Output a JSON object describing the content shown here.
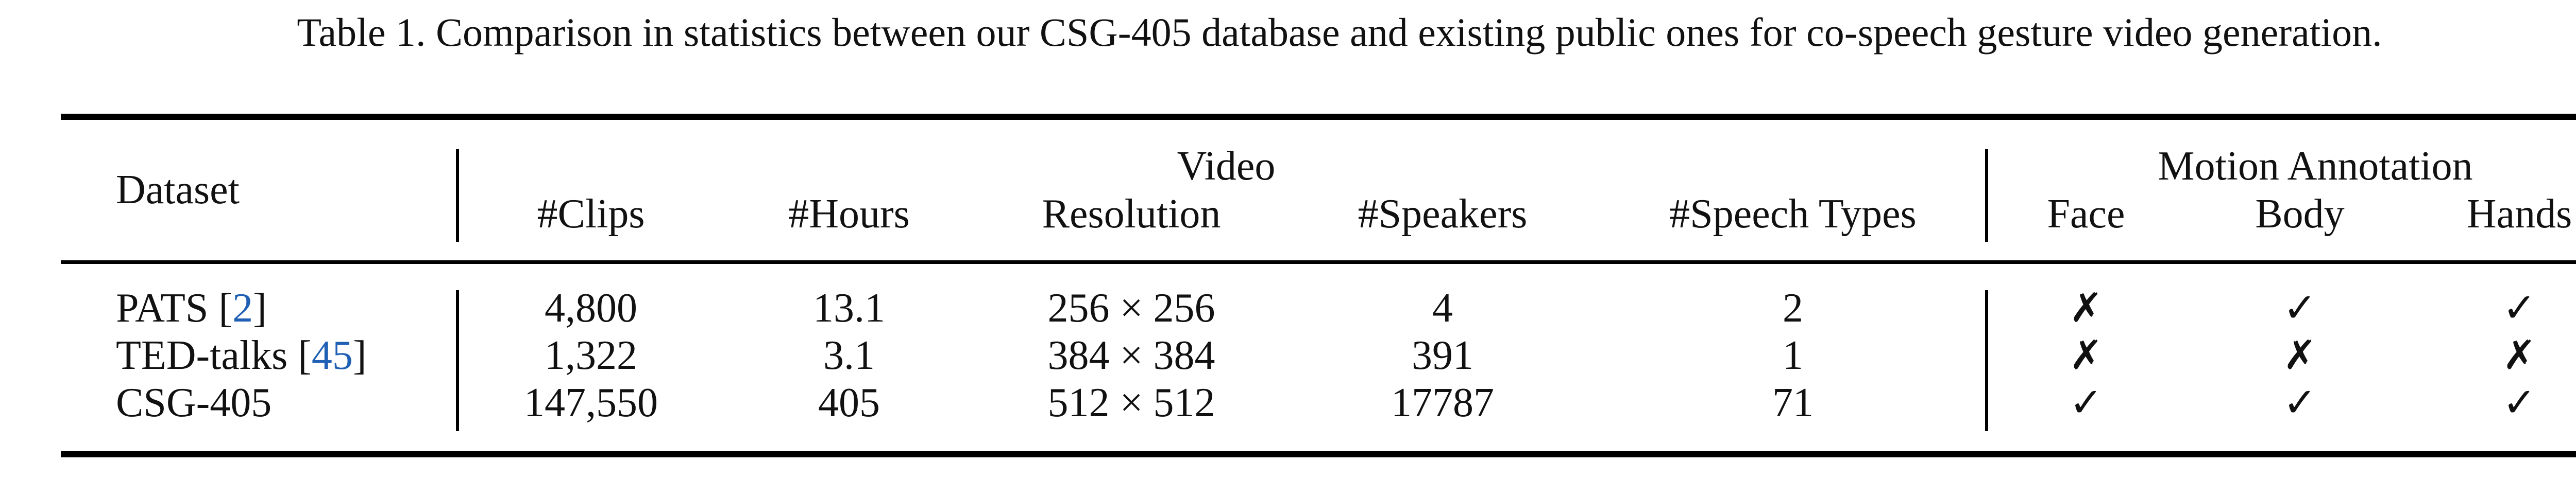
{
  "caption": "Table 1. Comparison in statistics between our CSG-405 database and existing public ones for co-speech gesture video generation.",
  "table": {
    "group_headers": {
      "video": "Video",
      "motion": "Motion Annotation"
    },
    "columns": {
      "dataset": "Dataset",
      "clips": "#Clips",
      "hours": "#Hours",
      "resolution": "Resolution",
      "speakers": "#Speakers",
      "speech_types": "#Speech Types",
      "face": "Face",
      "body": "Body",
      "hands": "Hands"
    },
    "rows": [
      {
        "name": "PATS [",
        "ref": "2",
        "ref_close": "]",
        "clips": "4,800",
        "hours": "13.1",
        "resolution": "256 × 256",
        "speakers": "4",
        "speech_types": "2",
        "face": "✗",
        "body": "✓",
        "hands": "✓"
      },
      {
        "name": "TED-talks [",
        "ref": "45",
        "ref_close": "]",
        "clips": "1,322",
        "hours": "3.1",
        "resolution": "384 × 384",
        "speakers": "391",
        "speech_types": "1",
        "face": "✗",
        "body": "✗",
        "hands": "✗"
      },
      {
        "name": "CSG-405",
        "ref": "",
        "ref_close": "",
        "clips": "147,550",
        "hours": "405",
        "resolution": "512 × 512",
        "speakers": "17787",
        "speech_types": "71",
        "face": "✓",
        "body": "✓",
        "hands": "✓"
      }
    ]
  }
}
